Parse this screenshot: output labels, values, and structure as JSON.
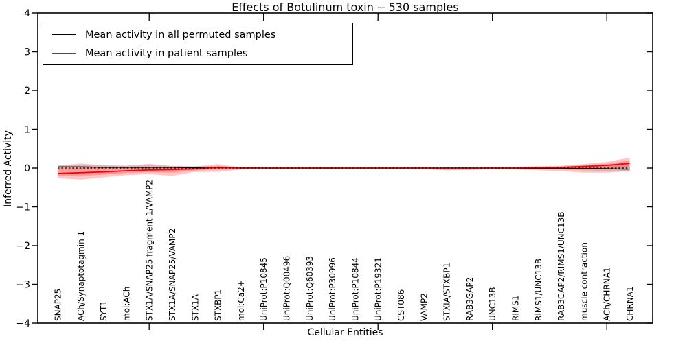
{
  "figure": {
    "title": "Effects of Botulinum toxin -- 530 samples"
  },
  "legend": {
    "entries": [
      {
        "label": "Mean activity in all permuted samples",
        "color": "#000000"
      },
      {
        "label": "Mean activity in patient samples",
        "color": "#ff0000"
      }
    ]
  },
  "chart_data": {
    "type": "line",
    "title": "Effects of Botulinum toxin -- 530 samples",
    "xlabel": "Cellular Entities",
    "ylabel": "Inferred Activity",
    "ylim": [
      -4,
      4
    ],
    "y_ticks": [
      4,
      3,
      2,
      1,
      0,
      -1,
      -2,
      -3,
      -4
    ],
    "grid": false,
    "legend_position": "upper left",
    "zero_line": {
      "y": 0,
      "style": "dashed",
      "color": "#000000"
    },
    "categories": [
      "SNAP25",
      "ACh/Synaptotagmin 1",
      "SYT1",
      "mol:ACh",
      "STX1A/SNAP25 fragment 1/VAMP2",
      "STX1A/SNAP25/VAMP2",
      "STX1A",
      "STXBP1",
      "mol:Ca2+",
      "UniProt:P10845",
      "UniProt:Q00496",
      "UniProt:Q60393",
      "UniProt:P30996",
      "UniProt:P10844",
      "UniProt:P19321",
      "CST086",
      "VAMP2",
      "STXIA/STXBP1",
      "RAB3GAP2",
      "UNC13B",
      "RIMS1",
      "RIMS1/UNC13B",
      "RAB3GAP2/RIMS1/UNC13B",
      "muscle contraction",
      "ACh/CHRNA1",
      "CHRNA1"
    ],
    "series": [
      {
        "name": "Mean activity in all permuted samples",
        "color": "#000000",
        "band_color": "#000000",
        "band_opacity": 0.12,
        "values": [
          0.03,
          0.03,
          0.02,
          0.02,
          0.02,
          0.02,
          0.01,
          0.01,
          0.01,
          0.0,
          0.0,
          0.0,
          0.0,
          0.0,
          0.0,
          0.0,
          0.0,
          0.0,
          0.0,
          0.0,
          0.0,
          -0.01,
          -0.01,
          -0.01,
          -0.02,
          -0.03
        ],
        "band_upper": [
          0.08,
          0.08,
          0.07,
          0.06,
          0.07,
          0.06,
          0.05,
          0.04,
          0.03,
          0.02,
          0.02,
          0.02,
          0.02,
          0.02,
          0.02,
          0.02,
          0.02,
          0.02,
          0.02,
          0.02,
          0.03,
          0.03,
          0.04,
          0.05,
          0.06,
          0.07
        ],
        "band_lower": [
          -0.04,
          -0.04,
          -0.03,
          -0.03,
          -0.03,
          -0.03,
          -0.02,
          -0.02,
          -0.01,
          -0.01,
          -0.01,
          -0.01,
          -0.01,
          -0.01,
          -0.01,
          -0.01,
          -0.01,
          -0.02,
          -0.02,
          -0.02,
          -0.02,
          -0.03,
          -0.04,
          -0.06,
          -0.08,
          -0.1
        ]
      },
      {
        "name": "Mean activity in patient samples",
        "color": "#ff0000",
        "band_color": "#ff0000",
        "band_opacity": 0.22,
        "values": [
          -0.14,
          -0.12,
          -0.1,
          -0.07,
          -0.05,
          -0.04,
          -0.02,
          0.02,
          0.0,
          0.0,
          0.0,
          0.0,
          0.0,
          0.0,
          0.0,
          0.0,
          0.0,
          -0.01,
          -0.01,
          0.0,
          0.0,
          0.01,
          0.02,
          0.04,
          0.07,
          0.12
        ],
        "band_upper": [
          0.06,
          0.12,
          0.07,
          0.06,
          0.11,
          0.05,
          0.04,
          0.1,
          0.02,
          0.01,
          0.01,
          0.01,
          0.01,
          0.01,
          0.01,
          0.01,
          0.02,
          0.03,
          0.03,
          0.02,
          0.03,
          0.05,
          0.06,
          0.1,
          0.16,
          0.27
        ],
        "band_lower": [
          -0.26,
          -0.3,
          -0.24,
          -0.18,
          -0.16,
          -0.2,
          -0.1,
          -0.1,
          -0.04,
          -0.02,
          -0.02,
          -0.02,
          -0.02,
          -0.02,
          -0.02,
          -0.02,
          -0.03,
          -0.06,
          -0.05,
          -0.03,
          -0.04,
          -0.06,
          -0.08,
          -0.12,
          -0.12,
          -0.08
        ]
      }
    ]
  }
}
